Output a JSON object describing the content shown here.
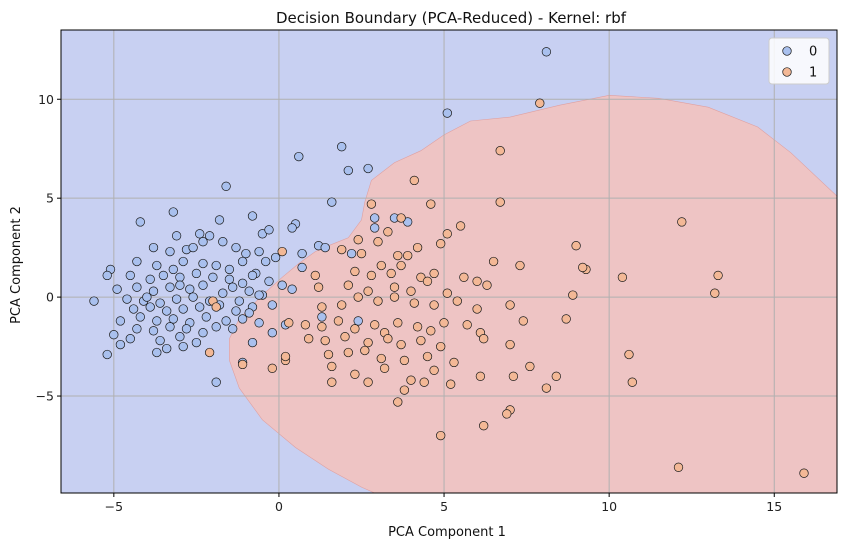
{
  "chart_data": {
    "type": "scatter",
    "title": "Decision Boundary (PCA-Reduced) - Kernel: rbf",
    "xlabel": "PCA Component 1",
    "ylabel": "PCA Component 2",
    "xlim": [
      -6.6,
      16.9
    ],
    "ylim": [
      -9.9,
      13.5
    ],
    "xticks": [
      -5,
      0,
      5,
      10,
      15
    ],
    "yticks": [
      -5,
      0,
      5,
      10
    ],
    "grid": true,
    "legend_position": "top-right",
    "region_colors": {
      "0": "#c8d0f2",
      "1": "#eec4c4"
    },
    "decision_boundary": [
      [
        -6.6,
        13.5
      ],
      [
        16.9,
        13.5
      ],
      [
        16.9,
        5.1
      ],
      [
        15.5,
        7.3
      ],
      [
        14.5,
        8.6
      ],
      [
        13,
        9.6
      ],
      [
        11.5,
        10.05
      ],
      [
        10,
        10.2
      ],
      [
        8.5,
        9.7
      ],
      [
        7,
        9.1
      ],
      [
        5.8,
        8.9
      ],
      [
        5,
        8.2
      ],
      [
        4.3,
        7.4
      ],
      [
        3.5,
        6.8
      ],
      [
        2.8,
        5.9
      ],
      [
        2.6,
        4.8
      ],
      [
        2.5,
        3.9
      ],
      [
        2.1,
        3
      ],
      [
        1.5,
        2.6
      ],
      [
        1.1,
        2.3
      ],
      [
        0.6,
        1.7
      ],
      [
        0.1,
        1
      ],
      [
        -0.5,
        0.1
      ],
      [
        -1.2,
        -1.1
      ],
      [
        -1.5,
        -2.1
      ],
      [
        -1.5,
        -3.2
      ],
      [
        -1.2,
        -4.6
      ],
      [
        -0.5,
        -6.2
      ],
      [
        0.5,
        -7.6
      ],
      [
        1.5,
        -8.7
      ],
      [
        2.5,
        -9.6
      ],
      [
        2.9,
        -9.9
      ],
      [
        16.9,
        -9.9
      ],
      [
        16.9,
        5.1
      ],
      [
        -6.6,
        13.5
      ]
    ],
    "series": [
      {
        "name": "0",
        "color": "#a9c0ee",
        "points": [
          [
            8.1,
            12.4
          ],
          [
            5.1,
            9.3
          ],
          [
            1.9,
            7.6
          ],
          [
            0.6,
            7.1
          ],
          [
            2.1,
            6.4
          ],
          [
            2.7,
            6.5
          ],
          [
            -1.6,
            5.6
          ],
          [
            1.6,
            4.8
          ],
          [
            2.9,
            4
          ],
          [
            3.5,
            4
          ],
          [
            3.9,
            3.8
          ],
          [
            2.9,
            3.5
          ],
          [
            -4.2,
            3.8
          ],
          [
            -3.2,
            4.3
          ],
          [
            -1.8,
            3.9
          ],
          [
            -0.8,
            4.1
          ],
          [
            0.5,
            3.7
          ],
          [
            0.4,
            3.5
          ],
          [
            -0.5,
            3.2
          ],
          [
            -0.3,
            3.4
          ],
          [
            -2.4,
            3.2
          ],
          [
            -2.1,
            3.1
          ],
          [
            -3.1,
            3.1
          ],
          [
            -2.8,
            2.4
          ],
          [
            -3.3,
            2.3
          ],
          [
            -3.8,
            2.5
          ],
          [
            -1.7,
            2.8
          ],
          [
            -1.3,
            2.5
          ],
          [
            -2.3,
            2.8
          ],
          [
            -2.6,
            2.5
          ],
          [
            -1.0,
            2.2
          ],
          [
            -0.6,
            2.3
          ],
          [
            -0.1,
            2.0
          ],
          [
            0.7,
            2.2
          ],
          [
            1.2,
            2.6
          ],
          [
            1.4,
            2.5
          ],
          [
            2.2,
            2.2
          ],
          [
            -4.3,
            1.8
          ],
          [
            -3.7,
            1.6
          ],
          [
            -3.2,
            1.4
          ],
          [
            -2.9,
            1.8
          ],
          [
            -2.3,
            1.7
          ],
          [
            -1.9,
            1.6
          ],
          [
            -1.5,
            1.4
          ],
          [
            -1.1,
            1.8
          ],
          [
            -0.7,
            1.2
          ],
          [
            -0.4,
            1.8
          ],
          [
            0.7,
            1.5
          ],
          [
            -5.1,
            1.4
          ],
          [
            -5.2,
            1.1
          ],
          [
            -4.5,
            1.1
          ],
          [
            -3.9,
            0.9
          ],
          [
            -3.5,
            1.1
          ],
          [
            -3.0,
            1.0
          ],
          [
            -2.5,
            1.2
          ],
          [
            -2.0,
            1.0
          ],
          [
            -1.5,
            0.9
          ],
          [
            -1.1,
            0.7
          ],
          [
            -0.8,
            1.1
          ],
          [
            -0.3,
            0.8
          ],
          [
            0.1,
            0.6
          ],
          [
            -4.9,
            0.4
          ],
          [
            -4.3,
            0.5
          ],
          [
            -3.8,
            0.3
          ],
          [
            -3.3,
            0.5
          ],
          [
            -2.7,
            0.4
          ],
          [
            -2.3,
            0.6
          ],
          [
            -1.7,
            0.2
          ],
          [
            -1.4,
            0.5
          ],
          [
            -0.9,
            0.3
          ],
          [
            -0.5,
            0.1
          ],
          [
            0.4,
            0.4
          ],
          [
            -5.6,
            -0.2
          ],
          [
            -4.6,
            -0.1
          ],
          [
            -4.1,
            -0.2
          ],
          [
            -3.6,
            -0.3
          ],
          [
            -3.1,
            -0.1
          ],
          [
            -2.6,
            0.0
          ],
          [
            -2.1,
            -0.2
          ],
          [
            -1.2,
            -0.2
          ],
          [
            -0.6,
            0.1
          ],
          [
            -4.4,
            -0.6
          ],
          [
            -3.9,
            -0.5
          ],
          [
            -3.4,
            -0.7
          ],
          [
            -2.9,
            -0.6
          ],
          [
            -2.4,
            -0.5
          ],
          [
            -1.8,
            -0.4
          ],
          [
            -1.3,
            -0.7
          ],
          [
            -0.8,
            -0.5
          ],
          [
            -0.2,
            -0.4
          ],
          [
            -4.8,
            -1.2
          ],
          [
            -4.2,
            -1.0
          ],
          [
            -3.7,
            -1.2
          ],
          [
            -3.2,
            -1.1
          ],
          [
            -2.7,
            -1.3
          ],
          [
            -2.2,
            -1.0
          ],
          [
            -1.6,
            -1.2
          ],
          [
            -1.1,
            -1.1
          ],
          [
            -0.6,
            -1.3
          ],
          [
            -0.9,
            -0.8
          ],
          [
            -4.3,
            -1.6
          ],
          [
            -3.8,
            -1.7
          ],
          [
            -3.3,
            -1.5
          ],
          [
            -2.8,
            -1.6
          ],
          [
            -2.3,
            -1.8
          ],
          [
            -1.9,
            -1.5
          ],
          [
            -1.4,
            -1.6
          ],
          [
            -5.0,
            -1.9
          ],
          [
            -4.5,
            -2.1
          ],
          [
            -3.6,
            -2.2
          ],
          [
            -3.0,
            -2.0
          ],
          [
            -2.5,
            -2.3
          ],
          [
            -3.4,
            -2.6
          ],
          [
            -2.9,
            -2.5
          ],
          [
            -5.2,
            -2.9
          ],
          [
            -4.8,
            -2.4
          ],
          [
            -3.7,
            -2.8
          ],
          [
            -1.9,
            -4.3
          ],
          [
            -1.1,
            -3.3
          ],
          [
            -0.8,
            -2.3
          ],
          [
            -0.2,
            -1.8
          ],
          [
            0.2,
            -1.4
          ],
          [
            1.3,
            -1.0
          ],
          [
            2.4,
            -1.2
          ],
          [
            -4.0,
            0.0
          ],
          [
            -3.0,
            0.6
          ]
        ]
      },
      {
        "name": "1",
        "color": "#f3b896",
        "points": [
          [
            7.9,
            9.8
          ],
          [
            6.7,
            7.4
          ],
          [
            4.1,
            5.9
          ],
          [
            2.8,
            4.7
          ],
          [
            4.6,
            4.7
          ],
          [
            6.7,
            4.8
          ],
          [
            3.7,
            4.0
          ],
          [
            5.5,
            3.6
          ],
          [
            3.3,
            3.3
          ],
          [
            2.4,
            2.9
          ],
          [
            3.0,
            2.8
          ],
          [
            4.2,
            2.5
          ],
          [
            4.9,
            2.7
          ],
          [
            5.1,
            3.2
          ],
          [
            1.9,
            2.4
          ],
          [
            2.5,
            2.2
          ],
          [
            3.6,
            2.1
          ],
          [
            3.9,
            2.1
          ],
          [
            3.1,
            1.6
          ],
          [
            3.4,
            1.2
          ],
          [
            3.7,
            1.6
          ],
          [
            2.3,
            1.3
          ],
          [
            2.8,
            1.1
          ],
          [
            1.1,
            1.1
          ],
          [
            4.3,
            1.0
          ],
          [
            4.7,
            1.2
          ],
          [
            5.6,
            1.0
          ],
          [
            6.5,
            1.8
          ],
          [
            7.3,
            1.6
          ],
          [
            6.0,
            0.8
          ],
          [
            1.2,
            0.5
          ],
          [
            2.1,
            0.6
          ],
          [
            2.7,
            0.3
          ],
          [
            3.5,
            0.5
          ],
          [
            4.0,
            0.3
          ],
          [
            4.5,
            0.8
          ],
          [
            5.1,
            0.2
          ],
          [
            6.3,
            0.6
          ],
          [
            1.3,
            -0.5
          ],
          [
            1.9,
            -0.4
          ],
          [
            2.4,
            0.0
          ],
          [
            3.0,
            -0.2
          ],
          [
            3.5,
            0.0
          ],
          [
            4.1,
            -0.3
          ],
          [
            4.7,
            -0.4
          ],
          [
            5.4,
            -0.2
          ],
          [
            6.0,
            -0.6
          ],
          [
            7.0,
            -0.4
          ],
          [
            0.3,
            -1.3
          ],
          [
            0.8,
            -1.4
          ],
          [
            1.3,
            -1.5
          ],
          [
            1.8,
            -1.2
          ],
          [
            2.3,
            -1.6
          ],
          [
            2.9,
            -1.4
          ],
          [
            3.2,
            -1.8
          ],
          [
            3.6,
            -1.3
          ],
          [
            4.2,
            -1.5
          ],
          [
            4.6,
            -1.7
          ],
          [
            5.0,
            -1.3
          ],
          [
            5.7,
            -1.4
          ],
          [
            6.1,
            -1.8
          ],
          [
            7.4,
            -1.2
          ],
          [
            8.7,
            -1.1
          ],
          [
            0.9,
            -2.1
          ],
          [
            1.4,
            -2.2
          ],
          [
            2.0,
            -2.0
          ],
          [
            2.7,
            -2.3
          ],
          [
            3.3,
            -2.1
          ],
          [
            3.7,
            -2.4
          ],
          [
            4.3,
            -2.2
          ],
          [
            4.9,
            -2.5
          ],
          [
            6.2,
            -2.1
          ],
          [
            7.0,
            -2.4
          ],
          [
            1.5,
            -2.9
          ],
          [
            2.1,
            -2.8
          ],
          [
            2.6,
            -2.7
          ],
          [
            3.1,
            -3.1
          ],
          [
            3.8,
            -3.2
          ],
          [
            4.5,
            -3.0
          ],
          [
            5.3,
            -3.3
          ],
          [
            0.2,
            -3.2
          ],
          [
            1.6,
            -3.5
          ],
          [
            2.3,
            -3.9
          ],
          [
            3.2,
            -3.6
          ],
          [
            4.0,
            -4.2
          ],
          [
            4.7,
            -3.7
          ],
          [
            5.2,
            -4.4
          ],
          [
            6.1,
            -4.0
          ],
          [
            7.1,
            -4.0
          ],
          [
            7.6,
            -3.5
          ],
          [
            8.4,
            -4.0
          ],
          [
            8.1,
            -4.6
          ],
          [
            1.6,
            -4.3
          ],
          [
            2.7,
            -4.3
          ],
          [
            3.8,
            -4.7
          ],
          [
            3.6,
            -5.3
          ],
          [
            4.4,
            -4.3
          ],
          [
            7.0,
            -5.7
          ],
          [
            6.9,
            -5.9
          ],
          [
            4.9,
            -7.0
          ],
          [
            6.2,
            -6.5
          ],
          [
            12.1,
            -8.6
          ],
          [
            15.9,
            -8.9
          ],
          [
            12.2,
            3.8
          ],
          [
            9.0,
            2.6
          ],
          [
            9.3,
            1.4
          ],
          [
            9.2,
            1.5
          ],
          [
            10.4,
            1.0
          ],
          [
            13.3,
            1.1
          ],
          [
            13.2,
            0.2
          ],
          [
            8.9,
            0.1
          ],
          [
            10.6,
            -2.9
          ],
          [
            10.7,
            -4.3
          ],
          [
            -2.0,
            -0.2
          ],
          [
            -1.9,
            -0.5
          ],
          [
            -2.1,
            -2.8
          ],
          [
            -1.1,
            -3.4
          ],
          [
            0.1,
            2.3
          ],
          [
            -0.2,
            -3.6
          ],
          [
            0.2,
            -3.0
          ]
        ]
      }
    ]
  }
}
